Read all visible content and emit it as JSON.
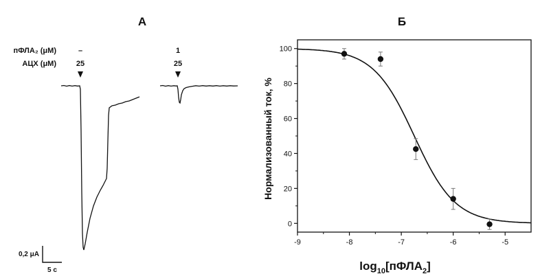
{
  "panel_a": {
    "letter": "А",
    "row1_label": "пФЛА₂ (μM)",
    "row2_label": "АЦХ (μM)",
    "trace1": {
      "pfla_conc": "–",
      "ach_conc": "25"
    },
    "trace2": {
      "pfla_conc": "1",
      "ach_conc": "25"
    },
    "scale_current": "0,2 μA",
    "scale_time": "5 с",
    "trace_color": "#111111"
  },
  "panel_b": {
    "letter": "Б"
  },
  "chart_data": {
    "type": "scatter",
    "title": "",
    "ylabel": "Нормализованный ток, %",
    "xlabel_main": "log",
    "xlabel_sub": "10",
    "xlabel_bracket_open": "[пФЛА",
    "xlabel_bracket_sub": "2",
    "xlabel_bracket_close": "]",
    "xlim": [
      -9,
      -4.5
    ],
    "ylim": [
      -5,
      105
    ],
    "x_ticks": [
      -9,
      -8,
      -7,
      -6,
      -5
    ],
    "x_tick_labels": [
      "-9",
      "-8",
      "-7",
      "-6",
      "-5"
    ],
    "y_ticks": [
      0,
      20,
      40,
      60,
      80,
      100
    ],
    "y_tick_labels": [
      "0",
      "20",
      "40",
      "60",
      "80",
      "100"
    ],
    "points": [
      {
        "x": -8.1,
        "y": 97,
        "err": 3
      },
      {
        "x": -7.4,
        "y": 94,
        "err": 4
      },
      {
        "x": -6.72,
        "y": 42.5,
        "err": 6
      },
      {
        "x": -6.0,
        "y": 14,
        "err": 6
      },
      {
        "x": -5.3,
        "y": -0.5,
        "err": 3
      }
    ],
    "fit": {
      "model": "hill",
      "top": 100,
      "bottom": 0,
      "log_ic50": -6.75,
      "hill_slope": 1.1
    },
    "color": "#111111"
  }
}
